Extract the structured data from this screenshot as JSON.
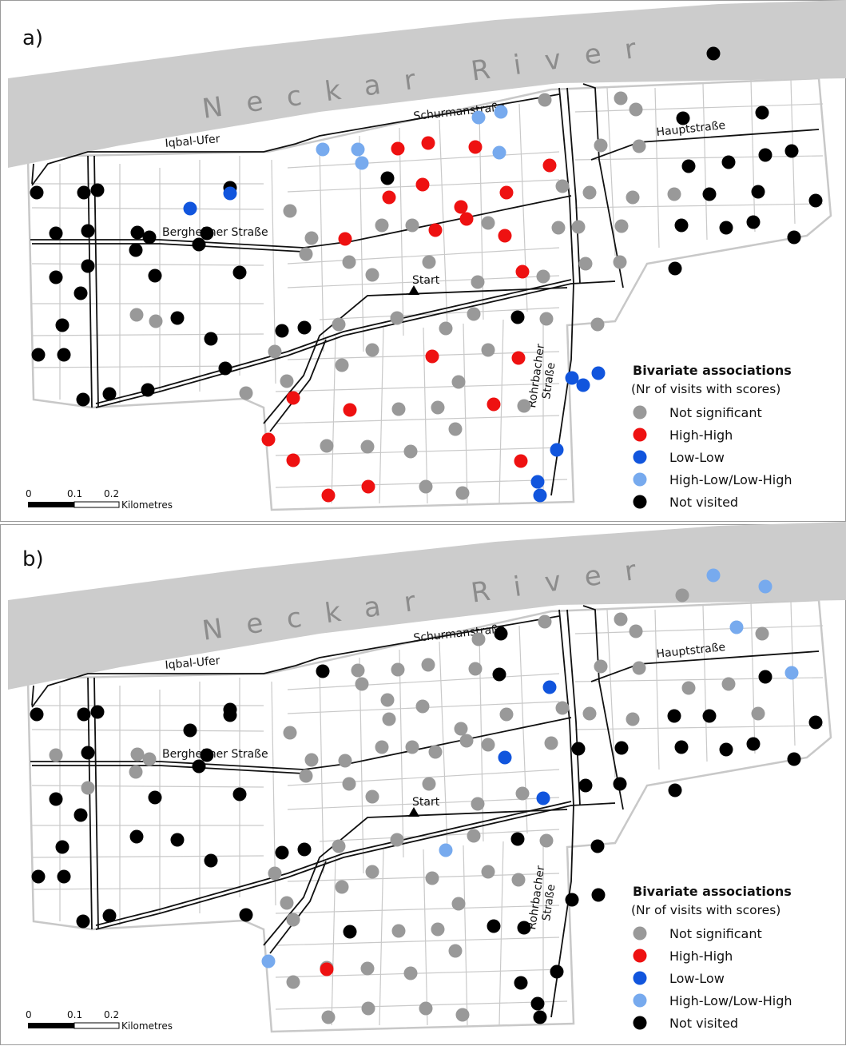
{
  "legend": {
    "title": "Bivariate associations",
    "subtitle": "(Nr of visits with scores)",
    "items": [
      {
        "key": "ns",
        "label": "Not significant",
        "color": "#999999"
      },
      {
        "key": "hh",
        "label": "High-High",
        "color": "#ee1111"
      },
      {
        "key": "ll",
        "label": "Low-Low",
        "color": "#1155dd"
      },
      {
        "key": "hl",
        "label": "High-Low/Low-High",
        "color": "#77aaee"
      },
      {
        "key": "nv",
        "label": "Not visited",
        "color": "#000000"
      }
    ]
  },
  "labels": {
    "river": "Neckar River",
    "street_schurman": "Schurmanstraße",
    "street_iqbal": "Iqbal-Ufer",
    "street_haupt": "Hauptstraße",
    "street_bergheimer": "Bergheimer Straße",
    "street_rohrbacher_1": "Rohrbacher",
    "street_rohrbacher_2": "Straße",
    "start": "Start"
  },
  "scale": {
    "ticks": [
      "0",
      "0.1",
      "0.2"
    ],
    "unit": "Kilometres"
  },
  "panels": [
    {
      "label": "a)",
      "points": [
        [
          "nv",
          893,
          67
        ],
        [
          "ns",
          682,
          125
        ],
        [
          "hl",
          627,
          140
        ],
        [
          "hl",
          599,
          147
        ],
        [
          "ns",
          777,
          123
        ],
        [
          "ns",
          796,
          137
        ],
        [
          "nv",
          855,
          148
        ],
        [
          "nv",
          954,
          141
        ],
        [
          "hl",
          404,
          187
        ],
        [
          "hl",
          448,
          187
        ],
        [
          "hl",
          453,
          204
        ],
        [
          "hh",
          498,
          186
        ],
        [
          "hh",
          536,
          179
        ],
        [
          "hh",
          595,
          184
        ],
        [
          "hl",
          625,
          191
        ],
        [
          "ns",
          752,
          182
        ],
        [
          "ns",
          800,
          183
        ],
        [
          "nv",
          862,
          208
        ],
        [
          "nv",
          912,
          203
        ],
        [
          "nv",
          958,
          194
        ],
        [
          "nv",
          991,
          189
        ],
        [
          "hh",
          688,
          207
        ],
        [
          "ns",
          704,
          233
        ],
        [
          "ns",
          738,
          241
        ],
        [
          "ns",
          792,
          247
        ],
        [
          "ns",
          844,
          243
        ],
        [
          "nv",
          888,
          243
        ],
        [
          "nv",
          949,
          240
        ],
        [
          "nv",
          1021,
          251
        ],
        [
          "nv",
          46,
          241
        ],
        [
          "nv",
          105,
          241
        ],
        [
          "nv",
          122,
          238
        ],
        [
          "nv",
          288,
          235
        ],
        [
          "ll",
          288,
          242
        ],
        [
          "ll",
          238,
          261
        ],
        [
          "nv",
          485,
          223
        ],
        [
          "hh",
          529,
          231
        ],
        [
          "hh",
          634,
          241
        ],
        [
          "hh",
          487,
          247
        ],
        [
          "hh",
          577,
          259
        ],
        [
          "hh",
          584,
          274
        ],
        [
          "ns",
          363,
          264
        ],
        [
          "ns",
          478,
          282
        ],
        [
          "ns",
          516,
          282
        ],
        [
          "ns",
          611,
          279
        ],
        [
          "ns",
          699,
          285
        ],
        [
          "ns",
          724,
          284
        ],
        [
          "ns",
          778,
          283
        ],
        [
          "nv",
          853,
          282
        ],
        [
          "nv",
          909,
          285
        ],
        [
          "nv",
          943,
          278
        ],
        [
          "nv",
          994,
          297
        ],
        [
          "nv",
          70,
          292
        ],
        [
          "nv",
          110,
          289
        ],
        [
          "nv",
          172,
          291
        ],
        [
          "nv",
          187,
          297
        ],
        [
          "nv",
          259,
          292
        ],
        [
          "nv",
          249,
          306
        ],
        [
          "nv",
          170,
          313
        ],
        [
          "hh",
          545,
          288
        ],
        [
          "hh",
          632,
          295
        ],
        [
          "ns",
          390,
          298
        ],
        [
          "hh",
          432,
          299
        ],
        [
          "ns",
          383,
          318
        ],
        [
          "ns",
          437,
          328
        ],
        [
          "ns",
          537,
          328
        ],
        [
          "ns",
          733,
          330
        ],
        [
          "ns",
          776,
          328
        ],
        [
          "nv",
          845,
          336
        ],
        [
          "nv",
          110,
          333
        ],
        [
          "nv",
          70,
          347
        ],
        [
          "nv",
          194,
          345
        ],
        [
          "nv",
          300,
          341
        ],
        [
          "nv",
          101,
          367
        ],
        [
          "ns",
          466,
          344
        ],
        [
          "hh",
          654,
          340
        ],
        [
          "ns",
          598,
          353
        ],
        [
          "ns",
          680,
          346
        ],
        [
          "ns",
          171,
          394
        ],
        [
          "ns",
          195,
          402
        ],
        [
          "nv",
          222,
          398
        ],
        [
          "nv",
          78,
          407
        ],
        [
          "nv",
          353,
          414
        ],
        [
          "nv",
          381,
          410
        ],
        [
          "nv",
          264,
          424
        ],
        [
          "ns",
          424,
          406
        ],
        [
          "ns",
          497,
          398
        ],
        [
          "ns",
          558,
          411
        ],
        [
          "ns",
          593,
          393
        ],
        [
          "nv",
          648,
          397
        ],
        [
          "ns",
          684,
          399
        ],
        [
          "ns",
          748,
          406
        ],
        [
          "nv",
          48,
          444
        ],
        [
          "nv",
          80,
          444
        ],
        [
          "ns",
          344,
          440
        ],
        [
          "ns",
          466,
          438
        ],
        [
          "hh",
          541,
          446
        ],
        [
          "ns",
          611,
          438
        ],
        [
          "hh",
          649,
          448
        ],
        [
          "nv",
          282,
          461
        ],
        [
          "ns",
          428,
          457
        ],
        [
          "ns",
          359,
          477
        ],
        [
          "ns",
          574,
          478
        ],
        [
          "nv",
          137,
          493
        ],
        [
          "nv",
          104,
          500
        ],
        [
          "nv",
          185,
          488
        ],
        [
          "ns",
          308,
          492
        ],
        [
          "hh",
          367,
          498
        ],
        [
          "hh",
          438,
          513
        ],
        [
          "ns",
          499,
          512
        ],
        [
          "ns",
          548,
          510
        ],
        [
          "hh",
          618,
          506
        ],
        [
          "ns",
          656,
          508
        ],
        [
          "ll",
          716,
          473
        ],
        [
          "ll",
          730,
          482
        ],
        [
          "ll",
          749,
          467
        ],
        [
          "hh",
          336,
          550
        ],
        [
          "ns",
          409,
          558
        ],
        [
          "ns",
          460,
          559
        ],
        [
          "ns",
          514,
          565
        ],
        [
          "ns",
          570,
          537
        ],
        [
          "hh",
          367,
          576
        ],
        [
          "hh",
          652,
          577
        ],
        [
          "ll",
          697,
          563
        ],
        [
          "hh",
          411,
          620
        ],
        [
          "hh",
          461,
          609
        ],
        [
          "ns",
          533,
          609
        ],
        [
          "ns",
          579,
          617
        ],
        [
          "ll",
          673,
          603
        ],
        [
          "ll",
          676,
          620
        ]
      ]
    },
    {
      "label": "b)",
      "points": [
        [
          "hl",
          893,
          720
        ],
        [
          "hl",
          958,
          734
        ],
        [
          "ns",
          854,
          745
        ],
        [
          "ns",
          777,
          775
        ],
        [
          "ns",
          796,
          790
        ],
        [
          "hl",
          922,
          785
        ],
        [
          "ns",
          954,
          793
        ],
        [
          "ns",
          599,
          800
        ],
        [
          "nv",
          627,
          793
        ],
        [
          "ns",
          682,
          778
        ],
        [
          "nv",
          404,
          840
        ],
        [
          "ns",
          448,
          839
        ],
        [
          "ns",
          453,
          856
        ],
        [
          "ns",
          498,
          838
        ],
        [
          "ns",
          536,
          832
        ],
        [
          "ns",
          595,
          837
        ],
        [
          "nv",
          625,
          844
        ],
        [
          "ll",
          688,
          860
        ],
        [
          "ns",
          752,
          834
        ],
        [
          "ns",
          800,
          836
        ],
        [
          "ns",
          862,
          861
        ],
        [
          "ns",
          912,
          856
        ],
        [
          "nv",
          958,
          847
        ],
        [
          "hl",
          991,
          842
        ],
        [
          "ns",
          704,
          886
        ],
        [
          "ns",
          738,
          893
        ],
        [
          "ns",
          792,
          900
        ],
        [
          "nv",
          844,
          896
        ],
        [
          "nv",
          888,
          896
        ],
        [
          "ns",
          949,
          893
        ],
        [
          "nv",
          1021,
          904
        ],
        [
          "nv",
          46,
          894
        ],
        [
          "nv",
          105,
          894
        ],
        [
          "nv",
          122,
          891
        ],
        [
          "nv",
          288,
          888
        ],
        [
          "nv",
          288,
          895
        ],
        [
          "nv",
          238,
          914
        ],
        [
          "ns",
          485,
          876
        ],
        [
          "ns",
          529,
          884
        ],
        [
          "ns",
          634,
          894
        ],
        [
          "ns",
          487,
          900
        ],
        [
          "ns",
          577,
          912
        ],
        [
          "ns",
          584,
          927
        ],
        [
          "ns",
          363,
          917
        ],
        [
          "ns",
          478,
          935
        ],
        [
          "ns",
          516,
          935
        ],
        [
          "ns",
          611,
          932
        ],
        [
          "ns",
          690,
          930
        ],
        [
          "nv",
          724,
          937
        ],
        [
          "nv",
          778,
          936
        ],
        [
          "nv",
          853,
          935
        ],
        [
          "nv",
          909,
          938
        ],
        [
          "nv",
          943,
          931
        ],
        [
          "nv",
          994,
          950
        ],
        [
          "ns",
          70,
          945
        ],
        [
          "nv",
          110,
          942
        ],
        [
          "ns",
          172,
          944
        ],
        [
          "ns",
          187,
          950
        ],
        [
          "nv",
          259,
          945
        ],
        [
          "nv",
          249,
          959
        ],
        [
          "ns",
          170,
          966
        ],
        [
          "ns",
          545,
          941
        ],
        [
          "ll",
          632,
          948
        ],
        [
          "ns",
          390,
          951
        ],
        [
          "ns",
          432,
          952
        ],
        [
          "ns",
          383,
          971
        ],
        [
          "ns",
          437,
          981
        ],
        [
          "ns",
          537,
          981
        ],
        [
          "nv",
          733,
          983
        ],
        [
          "nv",
          776,
          981
        ],
        [
          "nv",
          845,
          989
        ],
        [
          "ns",
          110,
          986
        ],
        [
          "nv",
          70,
          1000
        ],
        [
          "nv",
          194,
          998
        ],
        [
          "nv",
          300,
          994
        ],
        [
          "nv",
          101,
          1020
        ],
        [
          "ns",
          466,
          997
        ],
        [
          "ns",
          654,
          993
        ],
        [
          "ns",
          598,
          1006
        ],
        [
          "ll",
          680,
          999
        ],
        [
          "nv",
          171,
          1047
        ],
        [
          "nv",
          222,
          1051
        ],
        [
          "nv",
          78,
          1060
        ],
        [
          "nv",
          353,
          1067
        ],
        [
          "nv",
          381,
          1063
        ],
        [
          "nv",
          264,
          1077
        ],
        [
          "ns",
          424,
          1059
        ],
        [
          "ns",
          497,
          1051
        ],
        [
          "hl",
          558,
          1064
        ],
        [
          "ns",
          593,
          1046
        ],
        [
          "nv",
          648,
          1050
        ],
        [
          "ns",
          684,
          1052
        ],
        [
          "nv",
          748,
          1059
        ],
        [
          "nv",
          48,
          1097
        ],
        [
          "nv",
          80,
          1097
        ],
        [
          "ns",
          344,
          1093
        ],
        [
          "ns",
          466,
          1091
        ],
        [
          "ns",
          541,
          1099
        ],
        [
          "ns",
          611,
          1091
        ],
        [
          "ns",
          649,
          1101
        ],
        [
          "ns",
          428,
          1110
        ],
        [
          "ns",
          359,
          1130
        ],
        [
          "ns",
          574,
          1131
        ],
        [
          "nv",
          137,
          1146
        ],
        [
          "nv",
          104,
          1153
        ],
        [
          "nv",
          308,
          1145
        ],
        [
          "ns",
          367,
          1151
        ],
        [
          "nv",
          438,
          1166
        ],
        [
          "ns",
          499,
          1165
        ],
        [
          "ns",
          548,
          1163
        ],
        [
          "nv",
          618,
          1159
        ],
        [
          "nv",
          656,
          1161
        ],
        [
          "nv",
          716,
          1126
        ],
        [
          "nv",
          749,
          1120
        ],
        [
          "hl",
          336,
          1203
        ],
        [
          "ns",
          409,
          1211
        ],
        [
          "ns",
          460,
          1212
        ],
        [
          "ns",
          514,
          1218
        ],
        [
          "ns",
          570,
          1190
        ],
        [
          "ns",
          367,
          1229
        ],
        [
          "hh",
          409,
          1213
        ],
        [
          "nv",
          652,
          1230
        ],
        [
          "nv",
          697,
          1216
        ],
        [
          "ns",
          411,
          1273
        ],
        [
          "ns",
          461,
          1262
        ],
        [
          "ns",
          533,
          1262
        ],
        [
          "ns",
          579,
          1270
        ],
        [
          "nv",
          673,
          1256
        ],
        [
          "nv",
          676,
          1273
        ]
      ]
    }
  ]
}
